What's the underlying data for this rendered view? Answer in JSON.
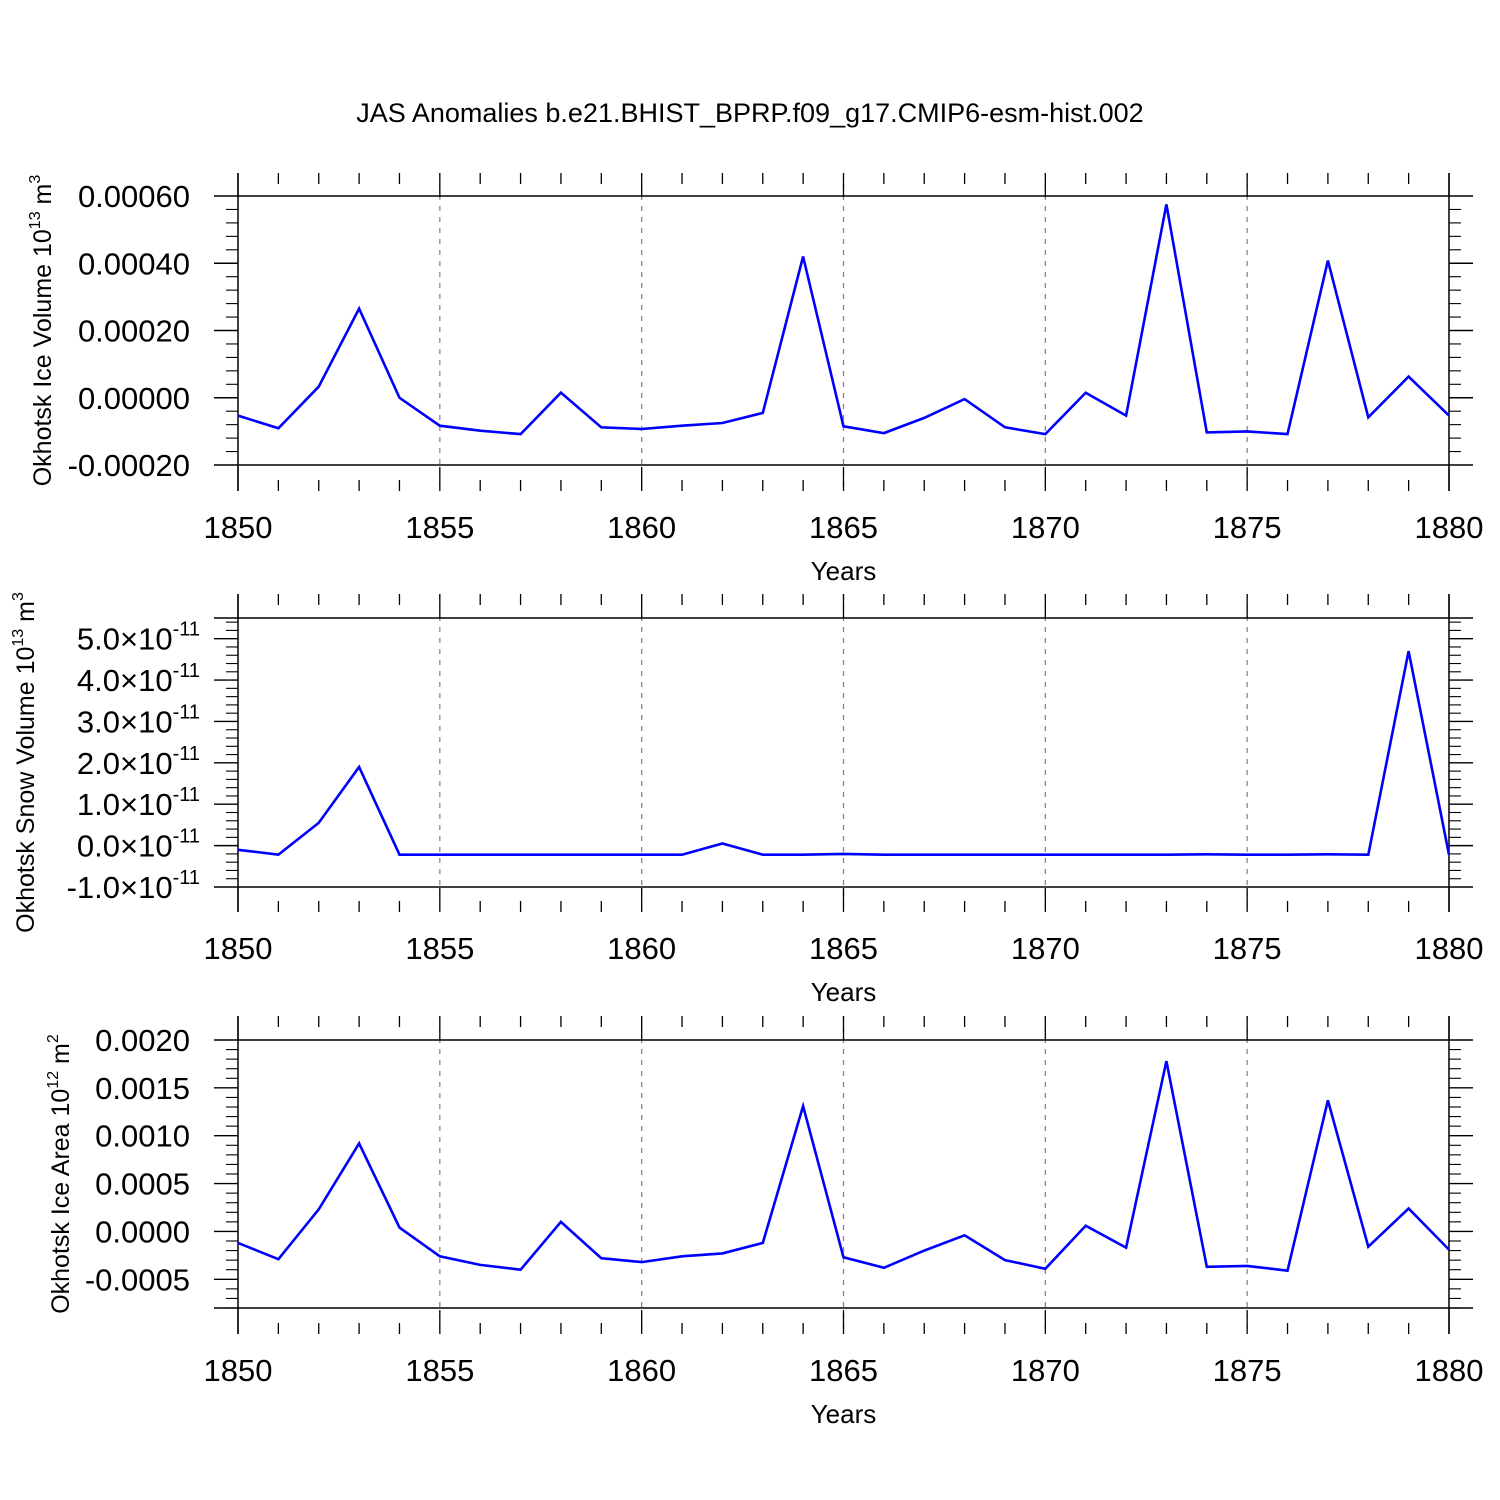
{
  "title": "JAS Anomalies b.e21.BHIST_BPRP.f09_g17.CMIP6-esm-hist.002",
  "line_color": "#0000ff",
  "chart_data": [
    {
      "type": "line",
      "xlabel": "Years",
      "ylabel": {
        "text": "Okhotsk Ice Volume 10",
        "sup": "13",
        "unit": " m",
        "unit_sup": "3"
      },
      "xlim": [
        1850,
        1880
      ],
      "ylim": [
        -0.0002,
        0.0006
      ],
      "x_ticks": [
        "1850",
        "1855",
        "1860",
        "1865",
        "1870",
        "1875",
        "1880"
      ],
      "y_ticks": [
        {
          "v": 0.0006,
          "label": "0.00060"
        },
        {
          "v": 0.0004,
          "label": "0.00040"
        },
        {
          "v": 0.0002,
          "label": "0.00020"
        },
        {
          "v": 0.0,
          "label": "0.00000"
        },
        {
          "v": -0.0002,
          "label": "-0.00020"
        }
      ],
      "x": [
        1850,
        1851,
        1852,
        1853,
        1854,
        1855,
        1856,
        1857,
        1858,
        1859,
        1860,
        1861,
        1862,
        1863,
        1864,
        1865,
        1866,
        1867,
        1868,
        1869,
        1870,
        1871,
        1872,
        1873,
        1874,
        1875,
        1876,
        1877,
        1878,
        1879,
        1880
      ],
      "values": [
        -5.3e-05,
        -9.1e-05,
        3.3e-05,
        0.000265,
        0.0,
        -8.3e-05,
        -9.8e-05,
        -0.000108,
        1.5e-05,
        -8.8e-05,
        -9.3e-05,
        -8.3e-05,
        -7.5e-05,
        -4.5e-05,
        0.00042,
        -8.5e-05,
        -0.000105,
        -6e-05,
        -4e-06,
        -8.8e-05,
        -0.000108,
        1.5e-05,
        -5.3e-05,
        0.000575,
        -0.000103,
        -0.0001,
        -0.000108,
        0.000408,
        -5.8e-05,
        6.3e-05,
        -5.3e-05
      ],
      "grid": "dashed vertical"
    },
    {
      "type": "line",
      "xlabel": "Years",
      "ylabel": {
        "text": "Okhotsk Snow Volume 10",
        "sup": "13",
        "unit": " m",
        "unit_sup": "3"
      },
      "xlim": [
        1850,
        1880
      ],
      "ylim": [
        -1e-11,
        5.5e-11
      ],
      "x_ticks": [
        "1850",
        "1855",
        "1860",
        "1865",
        "1870",
        "1875",
        "1880"
      ],
      "y_ticks": [
        {
          "v": 5e-11,
          "label": "5.0×10",
          "exp": "-11"
        },
        {
          "v": 4e-11,
          "label": "4.0×10",
          "exp": "-11"
        },
        {
          "v": 3e-11,
          "label": "3.0×10",
          "exp": "-11"
        },
        {
          "v": 2e-11,
          "label": "2.0×10",
          "exp": "-11"
        },
        {
          "v": 1e-11,
          "label": "1.0×10",
          "exp": "-11"
        },
        {
          "v": 0.0,
          "label": "0.0×10",
          "exp": "-11"
        },
        {
          "v": -1e-11,
          "label": "-1.0×10",
          "exp": "-11"
        }
      ],
      "x": [
        1850,
        1851,
        1852,
        1853,
        1854,
        1855,
        1856,
        1857,
        1858,
        1859,
        1860,
        1861,
        1862,
        1863,
        1864,
        1865,
        1866,
        1867,
        1868,
        1869,
        1870,
        1871,
        1872,
        1873,
        1874,
        1875,
        1876,
        1877,
        1878,
        1879,
        1880
      ],
      "values": [
        -1e-12,
        -2.2e-12,
        5.5e-12,
        1.9e-11,
        -2.2e-12,
        -2.2e-12,
        -2.2e-12,
        -2.2e-12,
        -2.2e-12,
        -2.2e-12,
        -2.2e-12,
        -2.2e-12,
        5e-13,
        -2.2e-12,
        -2.2e-12,
        -2e-12,
        -2.2e-12,
        -2.2e-12,
        -2.2e-12,
        -2.2e-12,
        -2.2e-12,
        -2.2e-12,
        -2.2e-12,
        -2.2e-12,
        -2.1e-12,
        -2.2e-12,
        -2.2e-12,
        -2.1e-12,
        -2.2e-12,
        4.7e-11,
        -2.2e-12
      ],
      "grid": "dashed vertical"
    },
    {
      "type": "line",
      "xlabel": "Years",
      "ylabel": {
        "text": "Okhotsk Ice Area 10",
        "sup": "12",
        "unit": " m",
        "unit_sup": "2"
      },
      "xlim": [
        1850,
        1880
      ],
      "ylim": [
        -0.0008,
        0.002
      ],
      "x_ticks": [
        "1850",
        "1855",
        "1860",
        "1865",
        "1870",
        "1875",
        "1880"
      ],
      "y_ticks": [
        {
          "v": 0.002,
          "label": "0.0020"
        },
        {
          "v": 0.0015,
          "label": "0.0015"
        },
        {
          "v": 0.001,
          "label": "0.0010"
        },
        {
          "v": 0.0005,
          "label": "0.0005"
        },
        {
          "v": 0.0,
          "label": "0.0000"
        },
        {
          "v": -0.0005,
          "label": "-0.0005"
        }
      ],
      "x": [
        1850,
        1851,
        1852,
        1853,
        1854,
        1855,
        1856,
        1857,
        1858,
        1859,
        1860,
        1861,
        1862,
        1863,
        1864,
        1865,
        1866,
        1867,
        1868,
        1869,
        1870,
        1871,
        1872,
        1873,
        1874,
        1875,
        1876,
        1877,
        1878,
        1879,
        1880
      ],
      "values": [
        -0.00012,
        -0.00029,
        0.00023,
        0.00092,
        4e-05,
        -0.00026,
        -0.00035,
        -0.0004,
        0.0001,
        -0.00028,
        -0.00032,
        -0.00026,
        -0.00023,
        -0.00012,
        0.00131,
        -0.00027,
        -0.00038,
        -0.0002,
        -4e-05,
        -0.0003,
        -0.00039,
        6e-05,
        -0.00017,
        0.00178,
        -0.00037,
        -0.00036,
        -0.00041,
        0.00137,
        -0.00016,
        0.00024,
        -0.00019
      ],
      "grid": "dashed vertical"
    }
  ]
}
